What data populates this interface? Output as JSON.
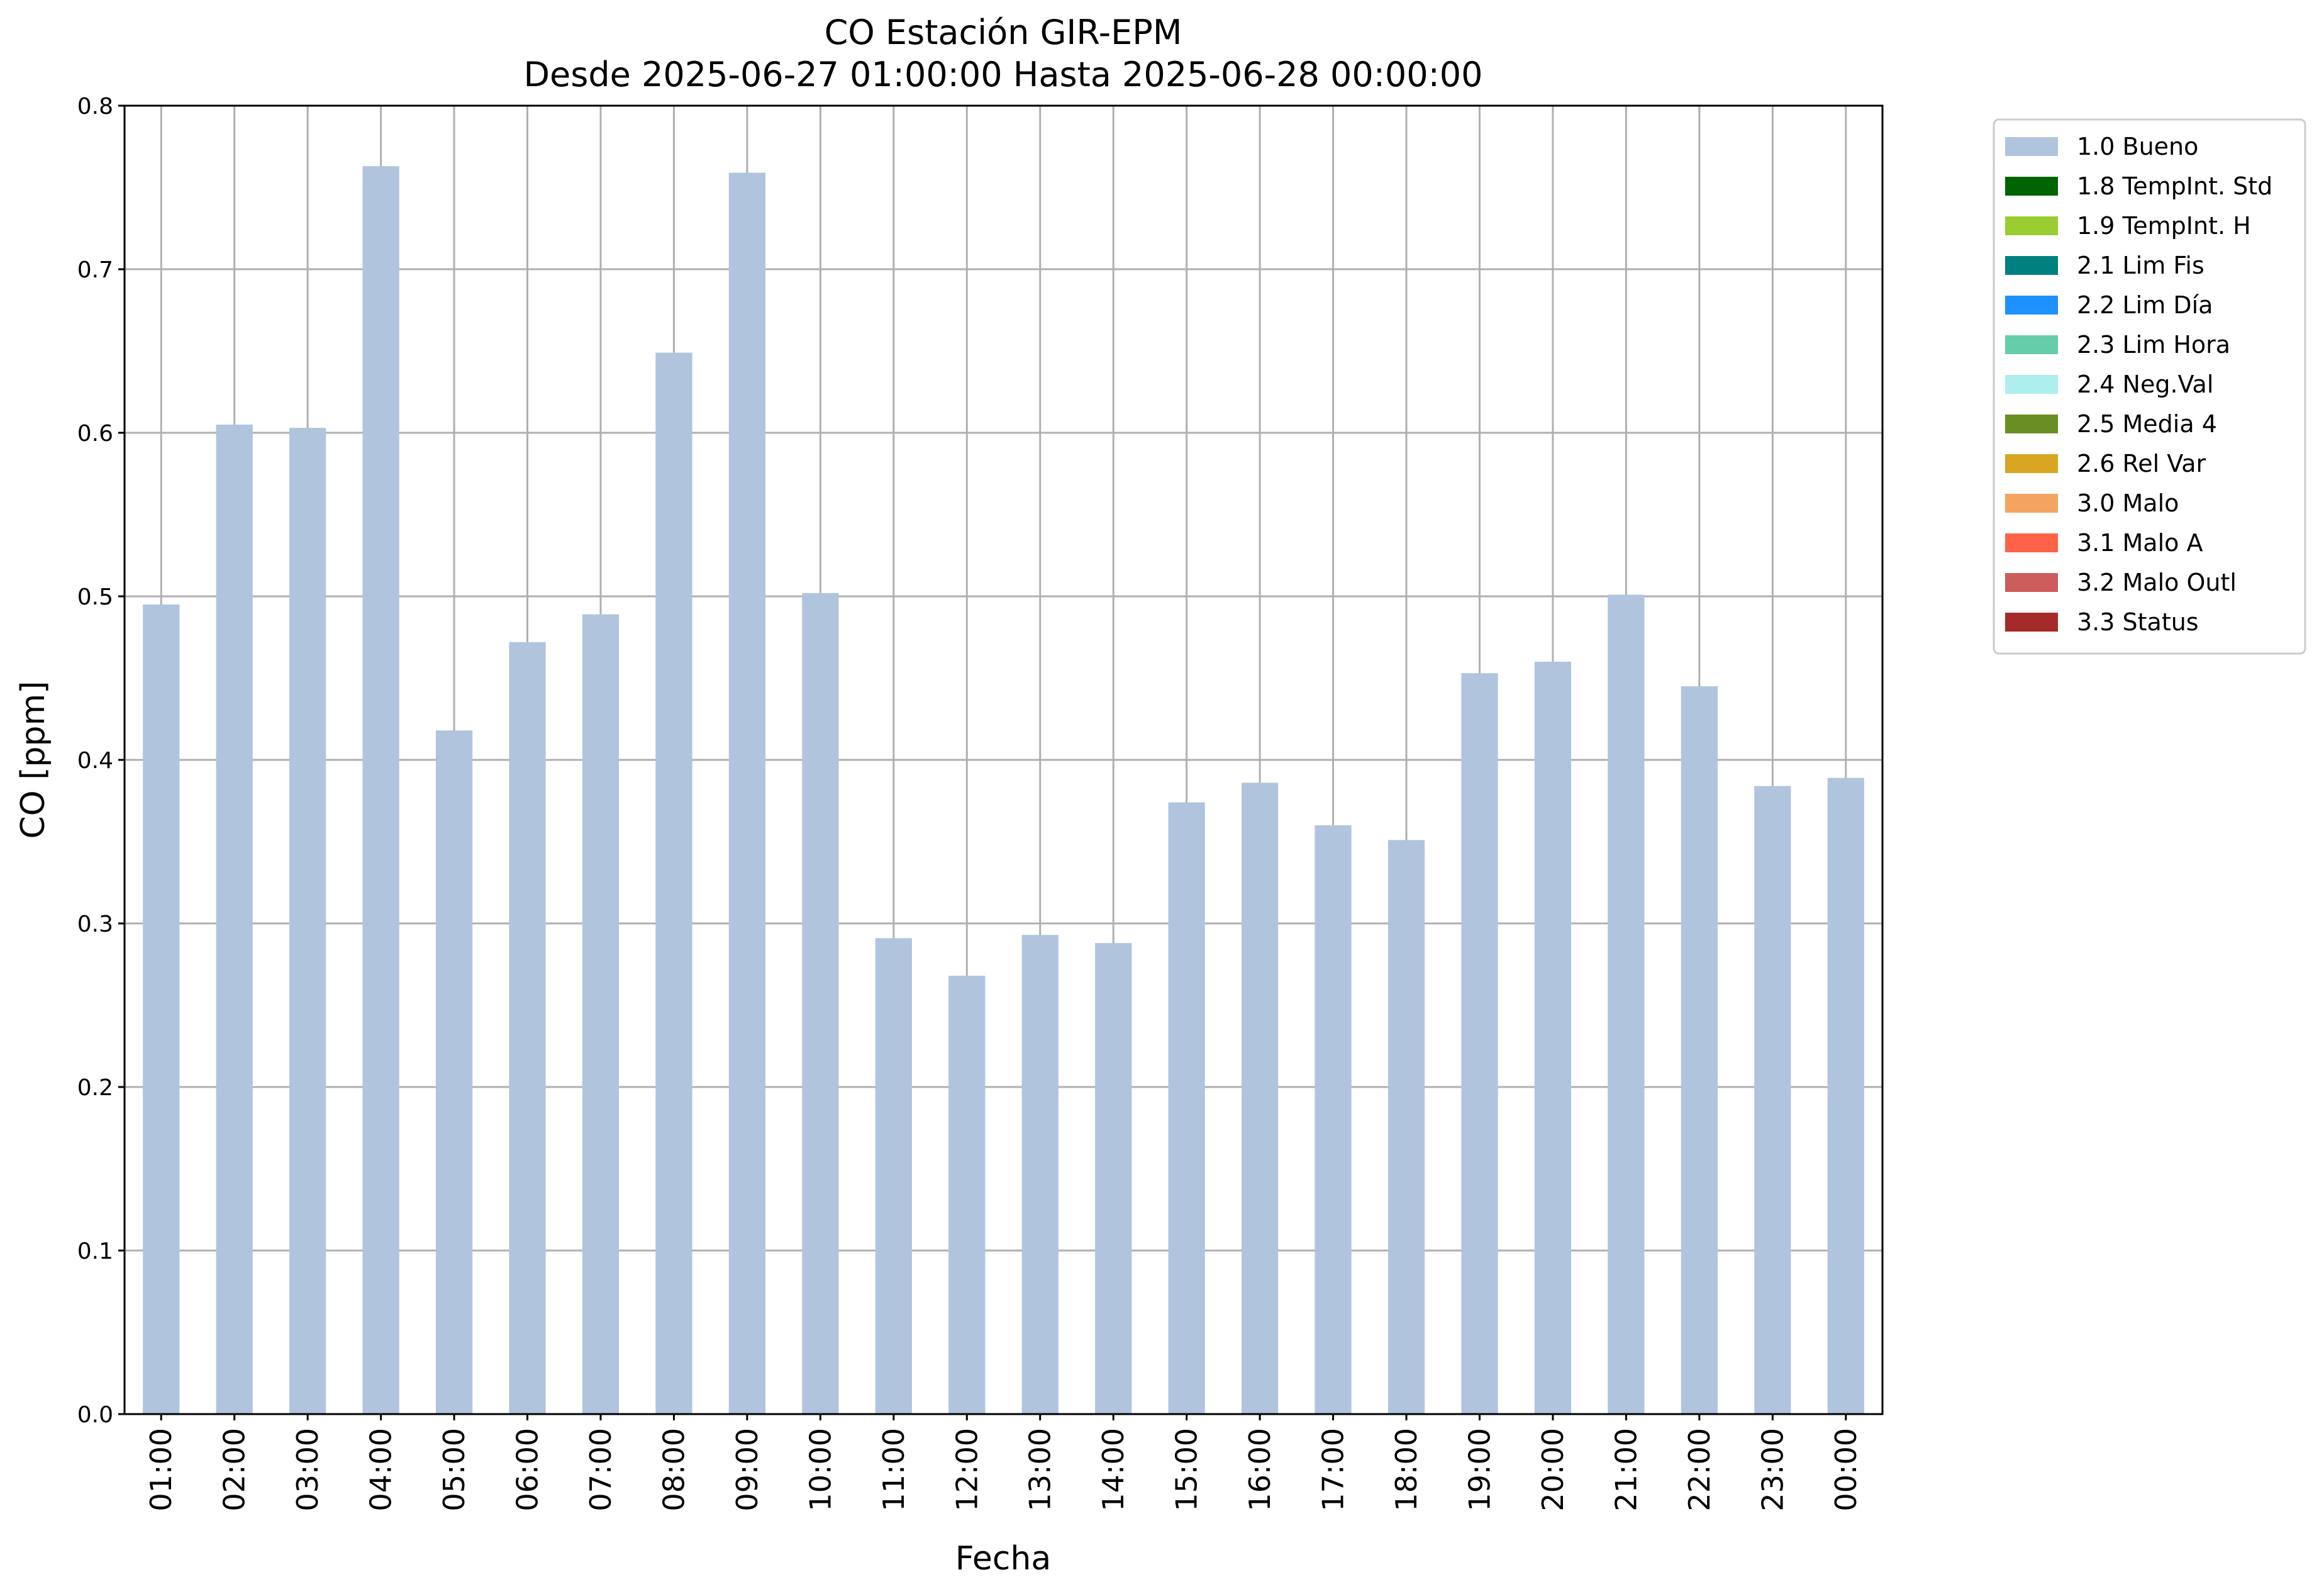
{
  "chart_data": {
    "type": "bar",
    "title": "CO Estación GIR-EPM",
    "subtitle": "Desde 2025-06-27 01:00:00 Hasta 2025-06-28 00:00:00",
    "xlabel": "Fecha",
    "ylabel": "CO [ppm]",
    "ylim": [
      0,
      0.8
    ],
    "yticks": [
      "0.0",
      "0.1",
      "0.2",
      "0.3",
      "0.4",
      "0.5",
      "0.6",
      "0.7",
      "0.8"
    ],
    "grid": true,
    "legend_position": "outside-top-right",
    "categories": [
      "01:00",
      "02:00",
      "03:00",
      "04:00",
      "05:00",
      "06:00",
      "07:00",
      "08:00",
      "09:00",
      "10:00",
      "11:00",
      "12:00",
      "13:00",
      "14:00",
      "15:00",
      "16:00",
      "17:00",
      "18:00",
      "19:00",
      "20:00",
      "21:00",
      "22:00",
      "23:00",
      "00:00"
    ],
    "series": [
      {
        "name": "1.0 Bueno",
        "color": "#b0c4de",
        "values": [
          0.495,
          0.605,
          0.603,
          0.763,
          0.418,
          0.472,
          0.489,
          0.649,
          0.759,
          0.502,
          0.291,
          0.268,
          0.293,
          0.288,
          0.374,
          0.386,
          0.36,
          0.351,
          0.453,
          0.46,
          0.501,
          0.445,
          0.384,
          0.389
        ]
      }
    ],
    "legend": [
      {
        "label": "1.0 Bueno",
        "color": "#b0c4de"
      },
      {
        "label": "1.8 TempInt. Std",
        "color": "#006400"
      },
      {
        "label": "1.9 TempInt. H",
        "color": "#9acd32"
      },
      {
        "label": "2.1 Lim Fis",
        "color": "#008080"
      },
      {
        "label": "2.2 Lim Día",
        "color": "#1e90ff"
      },
      {
        "label": "2.3 Lim Hora",
        "color": "#66cdaa"
      },
      {
        "label": "2.4 Neg.Val",
        "color": "#afeeee"
      },
      {
        "label": "2.5 Media 4",
        "color": "#6b8e23"
      },
      {
        "label": "2.6 Rel Var",
        "color": "#daa520"
      },
      {
        "label": "3.0 Malo",
        "color": "#f4a460"
      },
      {
        "label": "3.1 Malo A",
        "color": "#ff6347"
      },
      {
        "label": "3.2 Malo Outl",
        "color": "#cd5c5c"
      },
      {
        "label": "3.3 Status",
        "color": "#a52a2a"
      }
    ]
  }
}
